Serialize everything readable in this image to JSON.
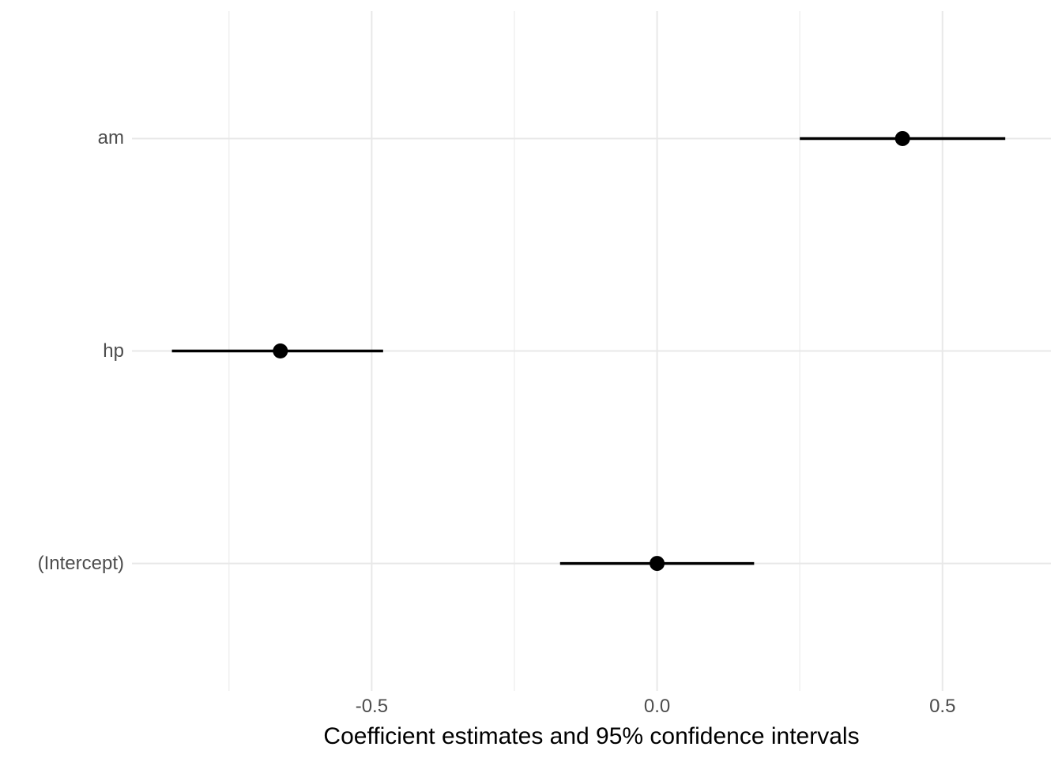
{
  "chart_data": {
    "type": "scatter",
    "subtype": "dot-and-whisker coefficient plot",
    "orientation": "horizontal",
    "title": "",
    "xlabel": "Coefficient estimates and 95% confidence intervals",
    "ylabel": "",
    "categories": [
      "am",
      "hp",
      "(Intercept)"
    ],
    "series": [
      {
        "name": "coefficient estimates",
        "points": [
          {
            "term": "am",
            "estimate": 0.43,
            "ci_low": 0.25,
            "ci_high": 0.61
          },
          {
            "term": "hp",
            "estimate": -0.66,
            "ci_low": -0.85,
            "ci_high": -0.48
          },
          {
            "term": "(Intercept)",
            "estimate": 0.0,
            "ci_low": -0.17,
            "ci_high": 0.17
          }
        ]
      }
    ],
    "x_major_ticks": [
      {
        "value": -0.5,
        "label": "-0.5"
      },
      {
        "value": 0.0,
        "label": "0.0"
      },
      {
        "value": 0.5,
        "label": "0.5"
      }
    ],
    "x_minor_ticks": [
      -0.75,
      -0.25,
      0.25
    ],
    "xlim": [
      -0.92,
      0.69
    ],
    "grid": "vertical major+minor gridlines; horizontal major gridline at each category row; no axis lines or tick marks",
    "legend": "none",
    "colors": {
      "background": "#ffffff",
      "point": "#000000",
      "whisker": "#000000",
      "grid_major": "#e8e8e8",
      "grid_minor": "#efefef",
      "axis_text": "#4d4d4d",
      "axis_title": "#000000"
    }
  }
}
